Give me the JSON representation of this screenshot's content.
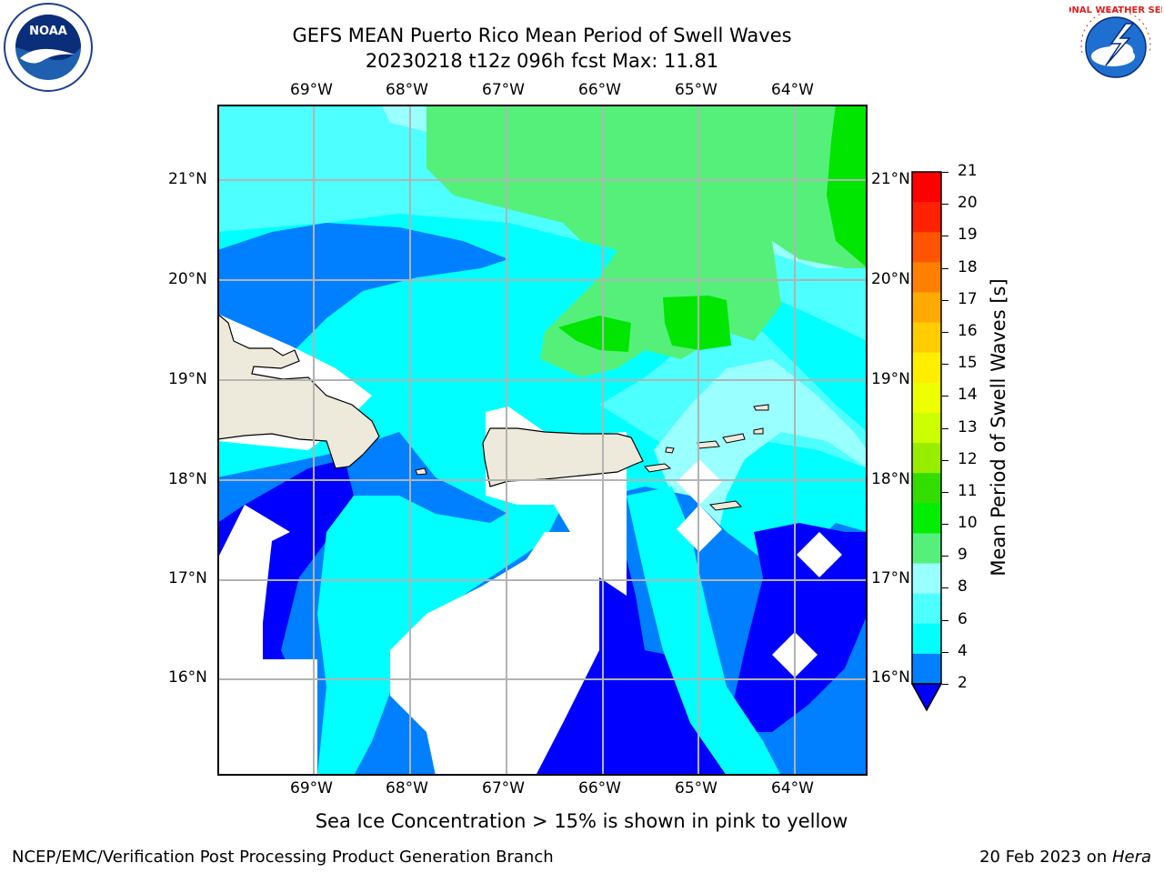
{
  "header": {
    "title_line1": "GEFS MEAN Puerto Rico Mean Period of Swell Waves",
    "title_line2": "20230218 t12z 096h fcst   Max: 11.81"
  },
  "logos": {
    "left": "noaa-logo",
    "right": "national-weather-service-logo",
    "noaa_text": "NOAA",
    "nws_text": "NATIONAL WEATHER SERVICE"
  },
  "map": {
    "lon_ticks": [
      "69°W",
      "68°W",
      "67°W",
      "66°W",
      "65°W",
      "64°W"
    ],
    "lat_ticks": [
      "21°N",
      "20°N",
      "19°N",
      "18°N",
      "17°N",
      "16°N"
    ],
    "land_color": "#eeeadb",
    "ocean_colors": {
      "2-4": "#0000ff",
      "4-6": "#0080ff",
      "6-8": "#00ffff",
      "8-9": "#4dffff",
      "9-10": "#99ffff",
      "10-11": "#55f07a",
      "11-12": "#00e600"
    }
  },
  "colorbar": {
    "label": "Mean Period of Swell Waves [s]",
    "ticks": [
      "21",
      "20",
      "19",
      "18",
      "17",
      "16",
      "15",
      "14",
      "13",
      "12",
      "11",
      "10",
      "9",
      "8",
      "6",
      "4",
      "2"
    ],
    "colors": [
      "#ff0000",
      "#ff2200",
      "#ff5500",
      "#ff8000",
      "#ffaa00",
      "#ffcc00",
      "#ffee00",
      "#eeff00",
      "#ccff00",
      "#99ee00",
      "#33dd00",
      "#00ee00",
      "#55f07a",
      "#99ffff",
      "#4dffff",
      "#00ffff",
      "#0080ff"
    ],
    "under_color": "#0000ff"
  },
  "subtitle": "Sea Ice Concentration > 15% is shown in pink to yellow",
  "footer": {
    "left": "NCEP/EMC/Verification Post Processing Product Generation Branch",
    "right_date": "20 Feb 2023 on ",
    "right_machine": "Hera"
  }
}
